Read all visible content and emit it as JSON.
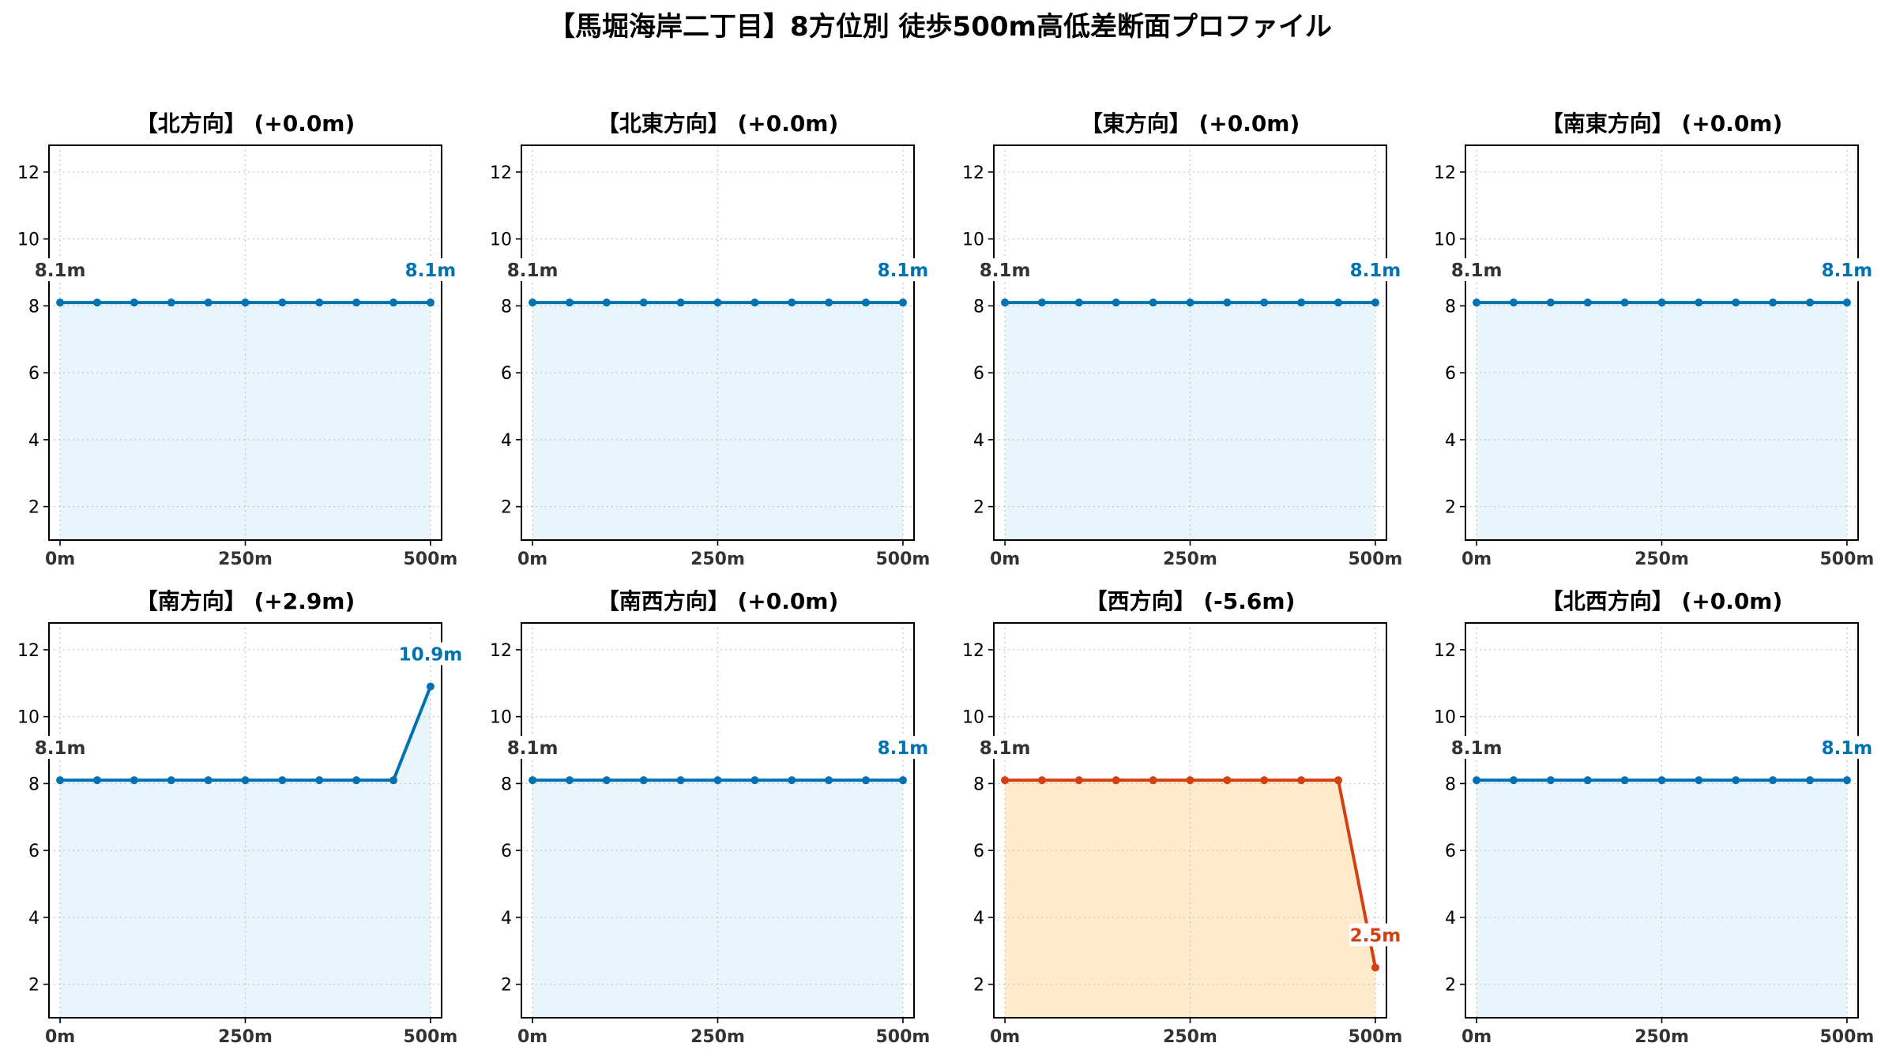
{
  "figure": {
    "title": "【馬堀海岸二丁目】8方位別 徒歩500m高低差断面プロファイル"
  },
  "colors": {
    "up_line": "#0072b2",
    "up_fill": "#e8f6fc",
    "down_line": "#d44012",
    "down_fill": "#ffebcc",
    "start_label": "#333333",
    "grid": "#c8c8c8"
  },
  "chart_data": [
    {
      "type": "area",
      "title": "【北方向】 (+0.0m)",
      "x": [
        0,
        50,
        100,
        150,
        200,
        250,
        300,
        350,
        400,
        450,
        500
      ],
      "y": [
        8.1,
        8.1,
        8.1,
        8.1,
        8.1,
        8.1,
        8.1,
        8.1,
        8.1,
        8.1,
        8.1
      ],
      "start_label": "8.1m",
      "end_label": "8.1m",
      "trend": "up",
      "xticks": [
        "0m",
        "250m",
        "500m"
      ],
      "yticks": [
        "2",
        "4",
        "6",
        "8",
        "10",
        "12"
      ],
      "xlim": [
        -15,
        515
      ],
      "ylim": [
        1,
        12.8
      ],
      "grid": true
    },
    {
      "type": "area",
      "title": "【北東方向】 (+0.0m)",
      "x": [
        0,
        50,
        100,
        150,
        200,
        250,
        300,
        350,
        400,
        450,
        500
      ],
      "y": [
        8.1,
        8.1,
        8.1,
        8.1,
        8.1,
        8.1,
        8.1,
        8.1,
        8.1,
        8.1,
        8.1
      ],
      "start_label": "8.1m",
      "end_label": "8.1m",
      "trend": "up",
      "xticks": [
        "0m",
        "250m",
        "500m"
      ],
      "yticks": [
        "2",
        "4",
        "6",
        "8",
        "10",
        "12"
      ],
      "xlim": [
        -15,
        515
      ],
      "ylim": [
        1,
        12.8
      ],
      "grid": true
    },
    {
      "type": "area",
      "title": "【東方向】 (+0.0m)",
      "x": [
        0,
        50,
        100,
        150,
        200,
        250,
        300,
        350,
        400,
        450,
        500
      ],
      "y": [
        8.1,
        8.1,
        8.1,
        8.1,
        8.1,
        8.1,
        8.1,
        8.1,
        8.1,
        8.1,
        8.1
      ],
      "start_label": "8.1m",
      "end_label": "8.1m",
      "trend": "up",
      "xticks": [
        "0m",
        "250m",
        "500m"
      ],
      "yticks": [
        "2",
        "4",
        "6",
        "8",
        "10",
        "12"
      ],
      "xlim": [
        -15,
        515
      ],
      "ylim": [
        1,
        12.8
      ],
      "grid": true
    },
    {
      "type": "area",
      "title": "【南東方向】 (+0.0m)",
      "x": [
        0,
        50,
        100,
        150,
        200,
        250,
        300,
        350,
        400,
        450,
        500
      ],
      "y": [
        8.1,
        8.1,
        8.1,
        8.1,
        8.1,
        8.1,
        8.1,
        8.1,
        8.1,
        8.1,
        8.1
      ],
      "start_label": "8.1m",
      "end_label": "8.1m",
      "trend": "up",
      "xticks": [
        "0m",
        "250m",
        "500m"
      ],
      "yticks": [
        "2",
        "4",
        "6",
        "8",
        "10",
        "12"
      ],
      "xlim": [
        -15,
        515
      ],
      "ylim": [
        1,
        12.8
      ],
      "grid": true
    },
    {
      "type": "area",
      "title": "【南方向】 (+2.9m)",
      "x": [
        0,
        50,
        100,
        150,
        200,
        250,
        300,
        350,
        400,
        450,
        500
      ],
      "y": [
        8.1,
        8.1,
        8.1,
        8.1,
        8.1,
        8.1,
        8.1,
        8.1,
        8.1,
        8.1,
        10.9
      ],
      "start_label": "8.1m",
      "end_label": "10.9m",
      "trend": "up",
      "xticks": [
        "0m",
        "250m",
        "500m"
      ],
      "yticks": [
        "2",
        "4",
        "6",
        "8",
        "10",
        "12"
      ],
      "xlim": [
        -15,
        515
      ],
      "ylim": [
        1,
        12.8
      ],
      "grid": true
    },
    {
      "type": "area",
      "title": "【南西方向】 (+0.0m)",
      "x": [
        0,
        50,
        100,
        150,
        200,
        250,
        300,
        350,
        400,
        450,
        500
      ],
      "y": [
        8.1,
        8.1,
        8.1,
        8.1,
        8.1,
        8.1,
        8.1,
        8.1,
        8.1,
        8.1,
        8.1
      ],
      "start_label": "8.1m",
      "end_label": "8.1m",
      "trend": "up",
      "xticks": [
        "0m",
        "250m",
        "500m"
      ],
      "yticks": [
        "2",
        "4",
        "6",
        "8",
        "10",
        "12"
      ],
      "xlim": [
        -15,
        515
      ],
      "ylim": [
        1,
        12.8
      ],
      "grid": true
    },
    {
      "type": "area",
      "title": "【西方向】 (-5.6m)",
      "x": [
        0,
        50,
        100,
        150,
        200,
        250,
        300,
        350,
        400,
        450,
        500
      ],
      "y": [
        8.1,
        8.1,
        8.1,
        8.1,
        8.1,
        8.1,
        8.1,
        8.1,
        8.1,
        8.1,
        2.5
      ],
      "start_label": "8.1m",
      "end_label": "2.5m",
      "trend": "down",
      "xticks": [
        "0m",
        "250m",
        "500m"
      ],
      "yticks": [
        "2",
        "4",
        "6",
        "8",
        "10",
        "12"
      ],
      "xlim": [
        -15,
        515
      ],
      "ylim": [
        1,
        12.8
      ],
      "grid": true
    },
    {
      "type": "area",
      "title": "【北西方向】 (+0.0m)",
      "x": [
        0,
        50,
        100,
        150,
        200,
        250,
        300,
        350,
        400,
        450,
        500
      ],
      "y": [
        8.1,
        8.1,
        8.1,
        8.1,
        8.1,
        8.1,
        8.1,
        8.1,
        8.1,
        8.1,
        8.1
      ],
      "start_label": "8.1m",
      "end_label": "8.1m",
      "trend": "up",
      "xticks": [
        "0m",
        "250m",
        "500m"
      ],
      "yticks": [
        "2",
        "4",
        "6",
        "8",
        "10",
        "12"
      ],
      "xlim": [
        -15,
        515
      ],
      "ylim": [
        1,
        12.8
      ],
      "grid": true
    }
  ]
}
